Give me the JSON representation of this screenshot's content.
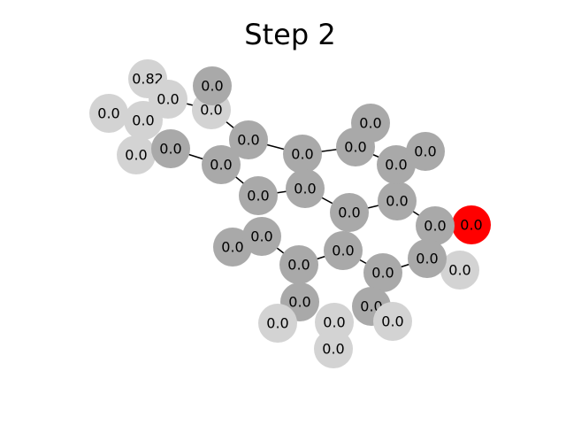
{
  "title": "Step 2",
  "colors": {
    "dark": "#a9a9a9",
    "light": "#d3d3d3",
    "active": "#ff0000"
  },
  "nodes": [
    {
      "id": "n1",
      "label": "0.82",
      "shade": "light"
    },
    {
      "id": "n2",
      "label": "0.0",
      "shade": "light"
    },
    {
      "id": "n3",
      "label": "0.0",
      "shade": "light"
    },
    {
      "id": "n4",
      "label": "0.0",
      "shade": "light"
    },
    {
      "id": "n5",
      "label": "0.0",
      "shade": "light"
    },
    {
      "id": "n6",
      "label": "0.0",
      "shade": "light"
    },
    {
      "id": "n7",
      "label": "0.0",
      "shade": "dark"
    },
    {
      "id": "n8",
      "label": "0.0",
      "shade": "dark"
    },
    {
      "id": "n9",
      "label": "0.0",
      "shade": "dark"
    },
    {
      "id": "n10",
      "label": "0.0",
      "shade": "dark"
    },
    {
      "id": "n11",
      "label": "0.0",
      "shade": "dark"
    },
    {
      "id": "n12",
      "label": "0.0",
      "shade": "dark"
    },
    {
      "id": "n13",
      "label": "0.0",
      "shade": "dark"
    },
    {
      "id": "n14",
      "label": "0.0",
      "shade": "dark"
    },
    {
      "id": "n15",
      "label": "0.0",
      "shade": "dark"
    },
    {
      "id": "n16",
      "label": "0.0",
      "shade": "dark"
    },
    {
      "id": "n17",
      "label": "0.0",
      "shade": "dark"
    },
    {
      "id": "n18",
      "label": "0.0",
      "shade": "dark"
    },
    {
      "id": "n19",
      "label": "0.0",
      "shade": "dark"
    },
    {
      "id": "n20",
      "label": "0.0",
      "shade": "dark"
    },
    {
      "id": "n21",
      "label": "0.0",
      "shade": "active"
    },
    {
      "id": "n22",
      "label": "0.0",
      "shade": "dark"
    },
    {
      "id": "n23",
      "label": "0.0",
      "shade": "light"
    },
    {
      "id": "n24",
      "label": "0.0",
      "shade": "dark"
    },
    {
      "id": "n25",
      "label": "0.0",
      "shade": "dark"
    },
    {
      "id": "n26",
      "label": "0.0",
      "shade": "dark"
    },
    {
      "id": "n27",
      "label": "0.0",
      "shade": "dark"
    },
    {
      "id": "n28",
      "label": "0.0",
      "shade": "dark"
    },
    {
      "id": "n29",
      "label": "0.0",
      "shade": "dark"
    },
    {
      "id": "n30",
      "label": "0.0",
      "shade": "dark"
    },
    {
      "id": "n31",
      "label": "0.0",
      "shade": "light"
    },
    {
      "id": "n32",
      "label": "0.0",
      "shade": "light"
    },
    {
      "id": "n33",
      "label": "0.0",
      "shade": "light"
    },
    {
      "id": "n34",
      "label": "0.0",
      "shade": "light"
    }
  ],
  "edges": [
    [
      "n2",
      "n6"
    ],
    [
      "n6",
      "n10"
    ],
    [
      "n10",
      "n11"
    ],
    [
      "n11",
      "n12"
    ],
    [
      "n12",
      "n14"
    ],
    [
      "n12",
      "n15"
    ],
    [
      "n7",
      "n5"
    ],
    [
      "n3",
      "n4"
    ],
    [
      "n9",
      "n8"
    ],
    [
      "n8",
      "n13"
    ],
    [
      "n13",
      "n15"
    ],
    [
      "n15",
      "n16"
    ],
    [
      "n16",
      "n18"
    ],
    [
      "n18",
      "n20"
    ],
    [
      "n20",
      "n22"
    ],
    [
      "n22",
      "n21"
    ],
    [
      "n22",
      "n24"
    ],
    [
      "n24",
      "n28"
    ],
    [
      "n28",
      "n27"
    ],
    [
      "n27",
      "n25"
    ],
    [
      "n25",
      "n26"
    ],
    [
      "n26",
      "n29"
    ],
    [
      "n26",
      "n16"
    ],
    [
      "n29",
      "n31"
    ],
    [
      "n25",
      "n27"
    ],
    [
      "n28",
      "n30"
    ],
    [
      "n30",
      "n33"
    ],
    [
      "n22",
      "n23"
    ],
    [
      "n19",
      "n18"
    ],
    [
      "n17",
      "n15"
    ],
    [
      "n13",
      "n26"
    ]
  ]
}
